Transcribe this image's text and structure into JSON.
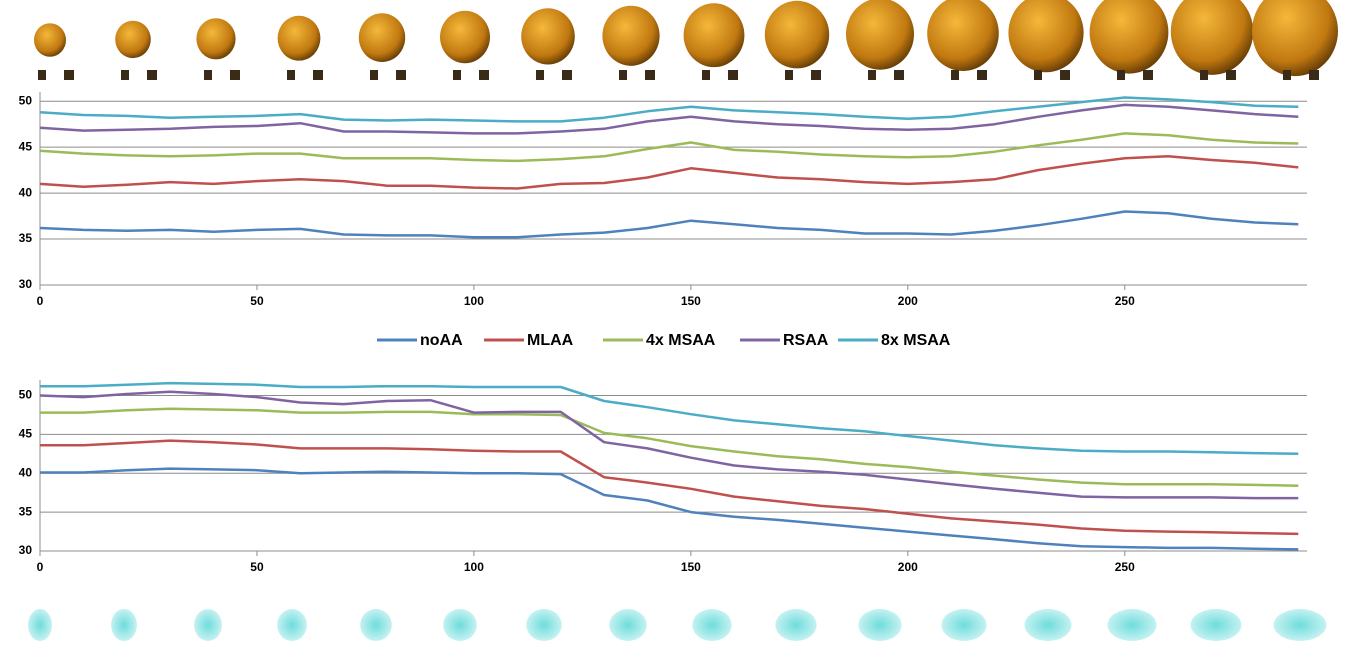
{
  "chart_data": [
    {
      "type": "line",
      "x": [
        0,
        10,
        20,
        30,
        40,
        50,
        60,
        70,
        80,
        90,
        100,
        110,
        120,
        130,
        140,
        150,
        160,
        170,
        180,
        190,
        200,
        210,
        220,
        230,
        240,
        250,
        260,
        270,
        280,
        290
      ],
      "xlim": [
        0,
        292
      ],
      "xticks": [
        0,
        50,
        100,
        150,
        200,
        250
      ],
      "ylim": [
        30,
        51
      ],
      "yticks": [
        30,
        35,
        40,
        45,
        50
      ],
      "grid": true,
      "series": [
        {
          "name": "noAA",
          "color": "#4f81bd",
          "values": [
            36.2,
            36,
            35.9,
            36,
            35.8,
            36,
            36.1,
            35.5,
            35.4,
            35.4,
            35.2,
            35.2,
            35.5,
            35.7,
            36.2,
            37,
            36.6,
            36.2,
            36,
            35.6,
            35.6,
            35.5,
            35.9,
            36.5,
            37.2,
            38,
            37.8,
            37.2,
            36.8,
            36.6
          ]
        },
        {
          "name": "MLAA",
          "color": "#c0504d",
          "values": [
            41,
            40.7,
            40.9,
            41.2,
            41,
            41.3,
            41.5,
            41.3,
            40.8,
            40.8,
            40.6,
            40.5,
            41,
            41.1,
            41.7,
            42.7,
            42.2,
            41.7,
            41.5,
            41.2,
            41,
            41.2,
            41.5,
            42.5,
            43.2,
            43.8,
            44,
            43.6,
            43.3,
            42.8
          ]
        },
        {
          "name": "4x MSAA",
          "color": "#9bbb59",
          "values": [
            44.6,
            44.3,
            44.1,
            44,
            44.1,
            44.3,
            44.3,
            43.8,
            43.8,
            43.8,
            43.6,
            43.5,
            43.7,
            44,
            44.8,
            45.5,
            44.7,
            44.5,
            44.2,
            44,
            43.9,
            44,
            44.5,
            45.2,
            45.8,
            46.5,
            46.3,
            45.8,
            45.5,
            45.4
          ]
        },
        {
          "name": "RSAA",
          "color": "#8064a2",
          "values": [
            47.1,
            46.8,
            46.9,
            47,
            47.2,
            47.3,
            47.6,
            46.7,
            46.7,
            46.6,
            46.5,
            46.5,
            46.7,
            47,
            47.8,
            48.3,
            47.8,
            47.5,
            47.3,
            47,
            46.9,
            47,
            47.5,
            48.3,
            49,
            49.6,
            49.4,
            49,
            48.6,
            48.3
          ]
        },
        {
          "name": "8x MSAA",
          "color": "#4bacc6",
          "values": [
            48.8,
            48.5,
            48.4,
            48.2,
            48.3,
            48.4,
            48.6,
            48,
            47.9,
            48,
            47.9,
            47.8,
            47.8,
            48.2,
            48.9,
            49.4,
            49,
            48.8,
            48.6,
            48.3,
            48.1,
            48.3,
            48.9,
            49.4,
            49.9,
            50.4,
            50.2,
            49.9,
            49.5,
            49.4
          ]
        }
      ]
    },
    {
      "type": "line",
      "x": [
        0,
        10,
        20,
        30,
        40,
        50,
        60,
        70,
        80,
        90,
        100,
        110,
        120,
        130,
        140,
        150,
        160,
        170,
        180,
        190,
        200,
        210,
        220,
        230,
        240,
        250,
        260,
        270,
        280,
        290
      ],
      "xlim": [
        0,
        292
      ],
      "xticks": [
        0,
        50,
        100,
        150,
        200,
        250
      ],
      "ylim": [
        30,
        52
      ],
      "yticks": [
        30,
        35,
        40,
        45,
        50
      ],
      "grid": true,
      "series": [
        {
          "color": "#4f81bd",
          "values": [
            40.1,
            40.1,
            40.4,
            40.6,
            40.5,
            40.4,
            40,
            40.1,
            40.2,
            40.1,
            40,
            40,
            39.9,
            37.2,
            36.5,
            35,
            34.4,
            34,
            33.5,
            33,
            32.5,
            32,
            31.5,
            31,
            30.6,
            30.5,
            30.4,
            30.4,
            30.3,
            30.2
          ]
        },
        {
          "color": "#c0504d",
          "values": [
            43.6,
            43.6,
            43.9,
            44.2,
            44,
            43.7,
            43.2,
            43.2,
            43.2,
            43.1,
            42.9,
            42.8,
            42.8,
            39.5,
            38.8,
            38,
            37,
            36.4,
            35.8,
            35.4,
            34.8,
            34.2,
            33.8,
            33.4,
            32.9,
            32.6,
            32.5,
            32.4,
            32.3,
            32.2
          ]
        },
        {
          "color": "#9bbb59",
          "values": [
            47.8,
            47.8,
            48.1,
            48.3,
            48.2,
            48.1,
            47.8,
            47.8,
            47.9,
            47.9,
            47.6,
            47.6,
            47.5,
            45.2,
            44.5,
            43.5,
            42.8,
            42.2,
            41.8,
            41.2,
            40.8,
            40.2,
            39.7,
            39.2,
            38.8,
            38.6,
            38.6,
            38.6,
            38.5,
            38.4
          ]
        },
        {
          "color": "#8064a2",
          "values": [
            50,
            49.8,
            50.2,
            50.5,
            50.2,
            49.8,
            49.1,
            48.9,
            49.3,
            49.4,
            47.8,
            47.9,
            47.9,
            44,
            43.2,
            42,
            41,
            40.5,
            40.2,
            39.8,
            39.2,
            38.6,
            38,
            37.5,
            37,
            36.9,
            36.9,
            36.9,
            36.8,
            36.8
          ]
        },
        {
          "color": "#4bacc6",
          "values": [
            51.2,
            51.2,
            51.4,
            51.6,
            51.5,
            51.4,
            51.1,
            51.1,
            51.2,
            51.2,
            51.1,
            51.1,
            51.1,
            49.3,
            48.5,
            47.6,
            46.8,
            46.3,
            45.8,
            45.4,
            44.8,
            44.2,
            43.6,
            43.2,
            42.9,
            42.8,
            42.8,
            42.7,
            42.6,
            42.5
          ]
        }
      ]
    }
  ]
}
